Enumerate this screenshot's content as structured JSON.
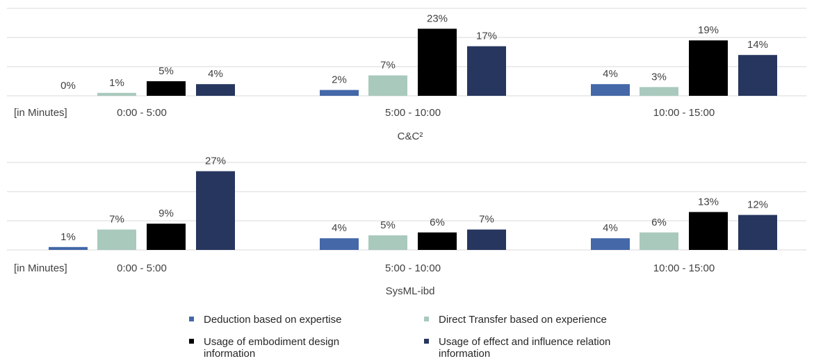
{
  "chart_data": [
    {
      "type": "bar",
      "title": "C&C²",
      "x_label": "[in Minutes]",
      "categories": [
        "0:00 - 5:00",
        "5:00 - 10:00",
        "10:00 - 15:00"
      ],
      "ylim": [
        0,
        30
      ],
      "yticks": [
        0,
        10,
        20,
        30
      ],
      "grid": true,
      "legend": "bottom",
      "series": [
        {
          "name": "Deduction based on expertise",
          "color": "#4468a8",
          "values": [
            0,
            2,
            4
          ],
          "value_labels": [
            "0%",
            "2%",
            "4%"
          ]
        },
        {
          "name": "Direct Transfer based on experience",
          "color": "#a9c9bd",
          "values": [
            1,
            7,
            3
          ],
          "value_labels": [
            "1%",
            "7%",
            "3%"
          ]
        },
        {
          "name": "Usage of embodiment design information",
          "color": "#000000",
          "values": [
            5,
            23,
            19
          ],
          "value_labels": [
            "5%",
            "23%",
            "19%"
          ]
        },
        {
          "name": "Usage of effect and influence relation information",
          "color": "#27365e",
          "values": [
            4,
            17,
            14
          ],
          "value_labels": [
            "4%",
            "17%",
            "14%"
          ]
        }
      ]
    },
    {
      "type": "bar",
      "title": "SysML-ibd",
      "x_label": "[in Minutes]",
      "categories": [
        "0:00 - 5:00",
        "5:00 - 10:00",
        "10:00 - 15:00"
      ],
      "ylim": [
        0,
        30
      ],
      "yticks": [
        0,
        10,
        20,
        30
      ],
      "grid": true,
      "series": [
        {
          "name": "Deduction based on expertise",
          "color": "#4468a8",
          "values": [
            1,
            4,
            4
          ],
          "value_labels": [
            "1%",
            "4%",
            "4%"
          ]
        },
        {
          "name": "Direct Transfer based on experience",
          "color": "#a9c9bd",
          "values": [
            7,
            5,
            6
          ],
          "value_labels": [
            "7%",
            "5%",
            "6%"
          ]
        },
        {
          "name": "Usage of embodiment design information",
          "color": "#000000",
          "values": [
            9,
            6,
            13
          ],
          "value_labels": [
            "9%",
            "6%",
            "13%"
          ]
        },
        {
          "name": "Usage of effect and influence relation information",
          "color": "#27365e",
          "values": [
            27,
            7,
            12
          ],
          "value_labels": [
            "27%",
            "7%",
            "12%"
          ]
        }
      ]
    }
  ]
}
